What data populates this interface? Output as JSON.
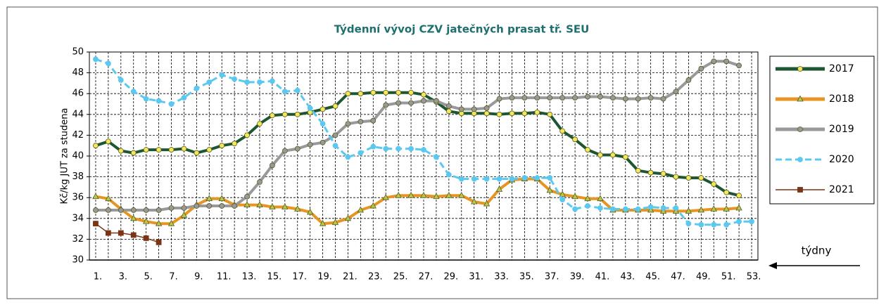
{
  "chart_data": {
    "type": "line",
    "title": "Týdenní vývoj CZV jatečných prasat tř. SEU",
    "y_label": "Kč/kg JUT za studena",
    "annotation": "týdny",
    "categories": [
      "1.",
      null,
      "3.",
      null,
      "5.",
      null,
      "7.",
      null,
      "9.",
      null,
      "11.",
      null,
      "13.",
      null,
      "15.",
      null,
      "17.",
      null,
      "19.",
      null,
      "21.",
      null,
      "23.",
      null,
      "25.",
      null,
      "27.",
      null,
      "29.",
      null,
      "31.",
      null,
      "33.",
      null,
      "35.",
      null,
      "37.",
      null,
      "39.",
      null,
      "41.",
      null,
      "43.",
      null,
      "45.",
      null,
      "47.",
      null,
      "49.",
      null,
      "51.",
      null,
      "53."
    ],
    "ylim": [
      30,
      50
    ],
    "yticks": [
      30,
      32,
      34,
      36,
      38,
      40,
      42,
      44,
      46,
      48,
      50
    ],
    "grid": true,
    "series": [
      {
        "name": "2017",
        "color": "#1e5631",
        "marker": "circle",
        "marker_color": "#f2e85a",
        "dashed": false,
        "values": [
          41.0,
          41.4,
          40.5,
          40.3,
          40.6,
          40.6,
          40.6,
          40.7,
          40.3,
          40.6,
          41.0,
          41.2,
          42.0,
          43.1,
          43.9,
          44.0,
          44.0,
          44.2,
          44.5,
          44.8,
          46.0,
          46.0,
          46.1,
          46.1,
          46.1,
          46.1,
          45.9,
          45.2,
          44.3,
          44.1,
          44.1,
          44.1,
          44.0,
          44.1,
          44.1,
          44.2,
          44.0,
          42.4,
          41.6,
          40.6,
          40.1,
          40.1,
          39.9,
          38.6,
          38.4,
          38.3,
          38.0,
          37.9,
          37.9,
          37.3,
          36.5,
          36.2,
          null
        ]
      },
      {
        "name": "2018",
        "color": "#e69522",
        "marker": "triangle",
        "marker_color": "#b7c94a",
        "dashed": false,
        "values": [
          36.1,
          35.9,
          34.9,
          34.0,
          33.7,
          33.5,
          33.5,
          34.3,
          35.3,
          35.9,
          35.9,
          35.3,
          35.3,
          35.3,
          35.1,
          35.1,
          34.9,
          34.6,
          33.5,
          33.6,
          34.0,
          34.8,
          35.2,
          36.0,
          36.2,
          36.2,
          36.2,
          36.1,
          36.2,
          36.2,
          35.6,
          35.4,
          36.8,
          37.7,
          37.8,
          37.8,
          36.7,
          36.3,
          36.1,
          35.9,
          35.9,
          34.8,
          34.8,
          34.8,
          34.8,
          34.7,
          34.7,
          34.7,
          34.8,
          34.9,
          34.9,
          35.0,
          null
        ]
      },
      {
        "name": "2019",
        "color": "#999999",
        "marker": "circle",
        "marker_color": "#999999",
        "dashed": false,
        "values": [
          34.8,
          34.8,
          34.8,
          34.8,
          34.8,
          34.8,
          35.0,
          35.0,
          35.2,
          35.2,
          35.2,
          35.2,
          36.1,
          37.5,
          39.1,
          40.5,
          40.7,
          41.1,
          41.3,
          42.0,
          43.1,
          43.3,
          43.4,
          44.9,
          45.1,
          45.1,
          45.3,
          45.3,
          44.8,
          44.5,
          44.5,
          44.6,
          45.5,
          45.6,
          45.6,
          45.6,
          45.6,
          45.6,
          45.6,
          45.7,
          45.7,
          45.6,
          45.5,
          45.5,
          45.6,
          45.5,
          46.2,
          47.3,
          48.4,
          49.1,
          49.1,
          48.7,
          null
        ]
      },
      {
        "name": "2020",
        "color": "#5bc8f0",
        "marker": "circle",
        "marker_color": "#5bc8f0",
        "dashed": true,
        "values": [
          49.3,
          48.9,
          47.3,
          46.2,
          45.5,
          45.3,
          45.0,
          45.6,
          46.5,
          47.1,
          47.8,
          47.4,
          47.1,
          47.1,
          47.2,
          46.2,
          46.3,
          44.6,
          43.1,
          41.0,
          39.9,
          40.3,
          40.9,
          40.7,
          40.7,
          40.7,
          40.6,
          39.9,
          38.2,
          37.8,
          37.8,
          37.8,
          37.8,
          37.8,
          37.9,
          37.9,
          37.9,
          35.8,
          34.9,
          35.2,
          35.0,
          34.9,
          34.9,
          34.9,
          35.1,
          35.0,
          35.0,
          33.5,
          33.4,
          33.4,
          33.4,
          33.7,
          33.7
        ]
      },
      {
        "name": "2021",
        "color": "#7b3414",
        "marker": "square",
        "marker_color": "#7b3414",
        "dashed": false,
        "values": [
          33.5,
          32.6,
          32.6,
          32.4,
          32.1,
          31.7,
          null,
          null,
          null,
          null,
          null,
          null,
          null,
          null,
          null,
          null,
          null,
          null,
          null,
          null,
          null,
          null,
          null,
          null,
          null,
          null,
          null,
          null,
          null,
          null,
          null,
          null,
          null,
          null,
          null,
          null,
          null,
          null,
          null,
          null,
          null,
          null,
          null,
          null,
          null,
          null,
          null,
          null,
          null,
          null,
          null,
          null,
          null
        ]
      }
    ]
  }
}
